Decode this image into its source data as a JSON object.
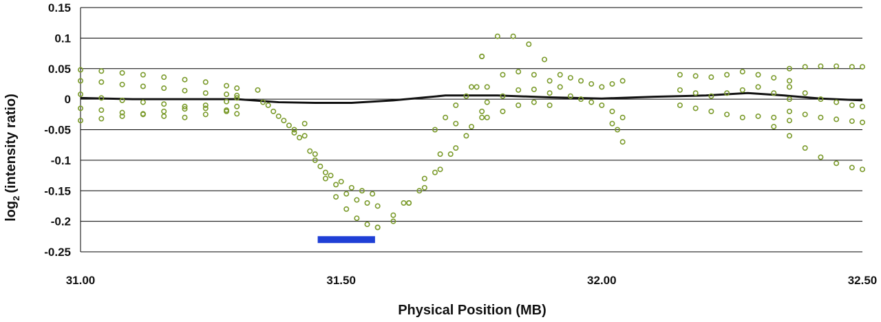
{
  "chart_data": {
    "type": "scatter",
    "title": "",
    "xlabel": "Physical Position (MB)",
    "ylabel": {
      "prefix": "log",
      "sub": "2",
      "suffix": "(intensity ratio)"
    },
    "xlim": [
      31.0,
      32.5
    ],
    "ylim": [
      -0.25,
      0.15
    ],
    "xticks": [
      31.0,
      31.5,
      32.0,
      32.5
    ],
    "xtick_labels": [
      "31.00",
      "31.50",
      "32.00",
      "32.50"
    ],
    "yticks": [
      0.15,
      0.1,
      0.05,
      0,
      -0.05,
      -0.1,
      -0.15,
      -0.2,
      -0.25
    ],
    "ytick_labels": [
      "0.15",
      "0.1",
      "0.05",
      "0",
      "-0.05",
      "-0.1",
      "-0.15",
      "-0.2",
      "-0.25"
    ],
    "grid": "horizontal",
    "legend": "none",
    "colors": {
      "points": "#7a9a2a",
      "trend": "#111111",
      "region": "#1f3fd6",
      "grid": "#000000"
    },
    "region_bar": {
      "x_start": 31.455,
      "x_end": 31.565,
      "y": -0.23
    },
    "trend_line": {
      "x": [
        31.0,
        31.1,
        31.2,
        31.3,
        31.38,
        31.45,
        31.52,
        31.6,
        31.7,
        31.8,
        31.9,
        32.0,
        32.1,
        32.2,
        32.28,
        32.35,
        32.42,
        32.5
      ],
      "y": [
        0.002,
        0.0,
        0.0,
        0.0,
        -0.005,
        -0.006,
        -0.006,
        -0.002,
        0.006,
        0.006,
        0.003,
        0.001,
        0.004,
        0.006,
        0.01,
        0.006,
        0.001,
        -0.002
      ]
    },
    "series": [
      {
        "x": [
          31.0,
          31.04,
          31.08,
          31.12,
          31.16,
          31.2,
          31.24,
          31.28,
          31.3
        ],
        "y": [
          0.048,
          0.046,
          0.043,
          0.04,
          0.036,
          0.032,
          0.028,
          0.022,
          0.018
        ]
      },
      {
        "x": [
          31.0,
          31.04,
          31.08,
          31.12,
          31.16,
          31.2,
          31.24,
          31.28,
          31.3
        ],
        "y": [
          0.03,
          0.028,
          0.024,
          0.021,
          0.018,
          0.014,
          0.01,
          0.008,
          0.006
        ]
      },
      {
        "x": [
          31.0,
          31.04,
          31.08,
          31.12,
          31.16,
          31.2,
          31.24,
          31.28,
          31.3
        ],
        "y": [
          0.008,
          0.002,
          -0.002,
          -0.005,
          -0.008,
          -0.012,
          -0.015,
          -0.02,
          -0.024
        ]
      },
      {
        "x": [
          31.0,
          31.04,
          31.08,
          31.12,
          31.16,
          31.2,
          31.24,
          31.28,
          31.3
        ],
        "y": [
          -0.015,
          -0.018,
          -0.022,
          -0.025,
          -0.028,
          -0.03,
          -0.025,
          -0.018,
          -0.012
        ]
      },
      {
        "x": [
          31.0,
          31.04,
          31.08,
          31.12,
          31.16,
          31.2,
          31.24,
          31.28,
          31.3
        ],
        "y": [
          -0.035,
          -0.032,
          -0.028,
          -0.024,
          -0.02,
          -0.016,
          -0.01,
          -0.004,
          0.002
        ]
      },
      {
        "x": [
          31.35,
          31.37,
          31.39,
          31.41,
          31.42
        ],
        "y": [
          -0.005,
          -0.02,
          -0.035,
          -0.05,
          -0.063
        ]
      },
      {
        "x": [
          31.34,
          31.36,
          31.38,
          31.4,
          31.41
        ],
        "y": [
          0.015,
          -0.01,
          -0.028,
          -0.043,
          -0.055
        ]
      },
      {
        "x": [
          31.43,
          31.45,
          31.47,
          31.49,
          31.51,
          31.53,
          31.55,
          31.57
        ],
        "y": [
          -0.04,
          -0.09,
          -0.13,
          -0.16,
          -0.18,
          -0.195,
          -0.205,
          -0.21
        ]
      },
      {
        "x": [
          31.43,
          31.45,
          31.47,
          31.49,
          31.51,
          31.53,
          31.55,
          31.57
        ],
        "y": [
          -0.06,
          -0.1,
          -0.12,
          -0.14,
          -0.155,
          -0.165,
          -0.17,
          -0.175
        ]
      },
      {
        "x": [
          31.44,
          31.46,
          31.48,
          31.5,
          31.52,
          31.54,
          31.56
        ],
        "y": [
          -0.085,
          -0.11,
          -0.125,
          -0.135,
          -0.145,
          -0.15,
          -0.155
        ]
      },
      {
        "x": [
          31.57,
          31.6,
          31.63,
          31.66,
          31.69,
          31.72,
          31.75,
          31.77
        ],
        "y": [
          -0.21,
          -0.2,
          -0.17,
          -0.13,
          -0.09,
          -0.04,
          0.02,
          0.07
        ]
      },
      {
        "x": [
          31.6,
          31.63,
          31.66,
          31.69,
          31.72,
          31.75,
          31.77
        ],
        "y": [
          -0.19,
          -0.17,
          -0.145,
          -0.115,
          -0.08,
          -0.045,
          -0.02
        ]
      },
      {
        "x": [
          31.62,
          31.65,
          31.68,
          31.71,
          31.74,
          31.77
        ],
        "y": [
          -0.17,
          -0.15,
          -0.12,
          -0.09,
          -0.06,
          -0.03
        ]
      },
      {
        "x": [
          31.68,
          31.7,
          31.72,
          31.74,
          31.76
        ],
        "y": [
          -0.05,
          -0.03,
          -0.01,
          0.005,
          0.02
        ]
      },
      {
        "x": [
          31.77,
          31.8,
          31.83,
          31.86,
          31.89,
          31.92
        ],
        "y": [
          0.07,
          0.103,
          0.103,
          0.09,
          0.065,
          0.04
        ]
      },
      {
        "x": [
          31.78,
          31.81,
          31.84,
          31.87,
          31.9,
          31.92
        ],
        "y": [
          0.02,
          0.04,
          0.045,
          0.04,
          0.03,
          0.02
        ]
      },
      {
        "x": [
          31.78,
          31.81,
          31.84,
          31.87,
          31.9
        ],
        "y": [
          -0.005,
          0.005,
          0.015,
          0.016,
          0.01
        ]
      },
      {
        "x": [
          31.78,
          31.81,
          31.84,
          31.87,
          31.9
        ],
        "y": [
          -0.03,
          -0.02,
          -0.01,
          -0.005,
          -0.01
        ]
      },
      {
        "x": [
          31.94,
          31.96,
          31.98,
          32.0,
          32.02,
          32.04
        ],
        "y": [
          0.035,
          0.03,
          0.025,
          0.02,
          0.025,
          0.03
        ]
      },
      {
        "x": [
          31.94,
          31.96,
          31.98,
          32.0,
          32.02,
          32.04
        ],
        "y": [
          0.005,
          0.0,
          -0.005,
          -0.01,
          -0.02,
          -0.03
        ]
      },
      {
        "x": [
          32.02,
          32.03,
          32.04
        ],
        "y": [
          -0.04,
          -0.05,
          -0.07
        ]
      },
      {
        "x": [
          32.15,
          32.18,
          32.21,
          32.24,
          32.27,
          32.3,
          32.33,
          32.36
        ],
        "y": [
          0.04,
          0.038,
          0.036,
          0.04,
          0.045,
          0.04,
          0.035,
          0.03
        ]
      },
      {
        "x": [
          32.15,
          32.18,
          32.21,
          32.24,
          32.27,
          32.3,
          32.33,
          32.36
        ],
        "y": [
          0.015,
          0.01,
          0.005,
          0.01,
          0.015,
          0.02,
          0.01,
          0.0
        ]
      },
      {
        "x": [
          32.15,
          32.18,
          32.21,
          32.24,
          32.27,
          32.3,
          32.33,
          32.36
        ],
        "y": [
          -0.01,
          -0.015,
          -0.02,
          -0.025,
          -0.03,
          -0.028,
          -0.03,
          -0.035
        ]
      },
      {
        "x": [
          32.36,
          32.39,
          32.42,
          32.45,
          32.48,
          32.5
        ],
        "y": [
          0.05,
          0.053,
          0.054,
          0.054,
          0.053,
          0.053
        ]
      },
      {
        "x": [
          32.36,
          32.39,
          32.42,
          32.45,
          32.48,
          32.5
        ],
        "y": [
          0.02,
          0.01,
          0.0,
          -0.005,
          -0.01,
          -0.012
        ]
      },
      {
        "x": [
          32.36,
          32.39,
          32.42,
          32.45,
          32.48,
          32.5
        ],
        "y": [
          -0.02,
          -0.025,
          -0.03,
          -0.033,
          -0.036,
          -0.038
        ]
      },
      {
        "x": [
          32.33,
          32.36,
          32.39,
          32.42,
          32.45,
          32.48,
          32.5
        ],
        "y": [
          -0.045,
          -0.06,
          -0.08,
          -0.095,
          -0.105,
          -0.112,
          -0.115
        ]
      }
    ]
  }
}
